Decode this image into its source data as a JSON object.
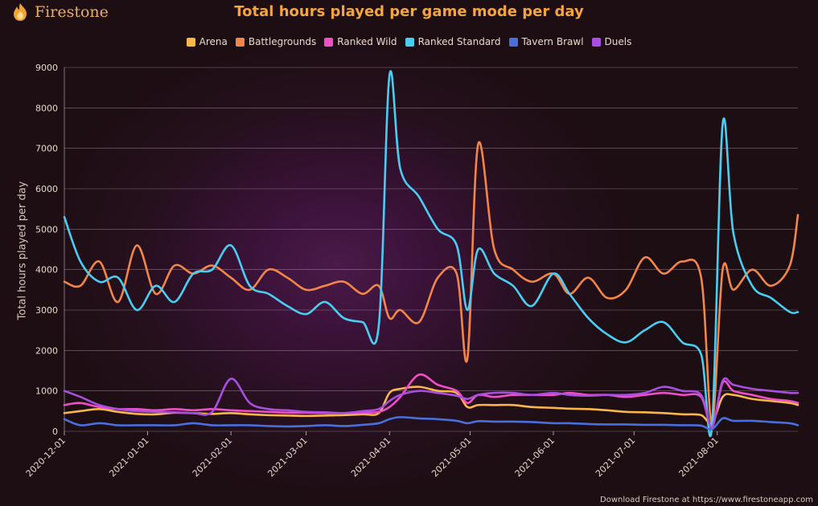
{
  "brand": {
    "name": "Firestone",
    "icon": "flame-logo-icon"
  },
  "colors": {
    "accent": "#f4a441",
    "background": "#1c0e12"
  },
  "footer": {
    "text": "Download Firestone at https://www.firestoneapp.com"
  },
  "chart_data": {
    "type": "line",
    "title": "Total hours played per game mode per day",
    "xlabel": "",
    "ylabel": "Total hours played per day",
    "ylim": [
      0,
      9000
    ],
    "yticks": [
      0,
      1000,
      2000,
      3000,
      4000,
      5000,
      6000,
      7000,
      8000,
      9000
    ],
    "xlim": [
      "2020-12-01",
      "2021-08-31"
    ],
    "x": [
      "2020-12-01",
      "2020-12-07",
      "2020-12-14",
      "2020-12-21",
      "2020-12-28",
      "2021-01-04",
      "2021-01-11",
      "2021-01-18",
      "2021-01-25",
      "2021-02-01",
      "2021-02-08",
      "2021-02-15",
      "2021-02-22",
      "2021-03-01",
      "2021-03-08",
      "2021-03-15",
      "2021-03-22",
      "2021-03-28",
      "2021-04-01",
      "2021-04-05",
      "2021-04-12",
      "2021-04-19",
      "2021-04-26",
      "2021-04-30",
      "2021-05-04",
      "2021-05-10",
      "2021-05-17",
      "2021-05-24",
      "2021-06-01",
      "2021-06-07",
      "2021-06-14",
      "2021-06-21",
      "2021-06-28",
      "2021-07-05",
      "2021-07-12",
      "2021-07-19",
      "2021-07-26",
      "2021-07-30",
      "2021-08-03",
      "2021-08-07",
      "2021-08-14",
      "2021-08-21",
      "2021-08-28",
      "2021-08-31"
    ],
    "xticks": [
      "2020-12-01",
      "2021-01-01",
      "2021-02-01",
      "2021-03-01",
      "2021-04-01",
      "2021-05-01",
      "2021-06-01",
      "2021-07-01",
      "2021-08-01"
    ],
    "legend": "top-center",
    "grid": true,
    "series": [
      {
        "name": "Arena",
        "color": "#f9b64a",
        "values": [
          450,
          500,
          550,
          480,
          430,
          420,
          460,
          450,
          430,
          450,
          420,
          400,
          390,
          380,
          390,
          400,
          420,
          450,
          950,
          1050,
          1100,
          1000,
          950,
          600,
          650,
          650,
          650,
          600,
          580,
          560,
          550,
          520,
          480,
          470,
          450,
          420,
          400,
          200,
          850,
          900,
          800,
          750,
          700,
          650
        ]
      },
      {
        "name": "Battlegrounds",
        "color": "#f2864a",
        "values": [
          3700,
          3600,
          4200,
          3200,
          4600,
          3400,
          4100,
          3900,
          4100,
          3800,
          3500,
          4000,
          3800,
          3500,
          3600,
          3700,
          3400,
          3600,
          2800,
          3000,
          2700,
          3800,
          3900,
          1800,
          7100,
          4500,
          4000,
          3700,
          3900,
          3400,
          3800,
          3300,
          3500,
          4300,
          3900,
          4200,
          3800,
          200,
          4000,
          3500,
          4000,
          3600,
          4100,
          5350
        ]
      },
      {
        "name": "Ranked Wild",
        "color": "#ee4fc7",
        "values": [
          650,
          700,
          600,
          550,
          550,
          520,
          550,
          520,
          550,
          520,
          500,
          480,
          460,
          460,
          450,
          450,
          460,
          480,
          600,
          850,
          1400,
          1150,
          1000,
          700,
          900,
          850,
          900,
          900,
          900,
          950,
          900,
          900,
          850,
          900,
          950,
          900,
          850,
          100,
          1200,
          1000,
          900,
          800,
          750,
          700
        ]
      },
      {
        "name": "Ranked Standard",
        "color": "#4bcdf2",
        "values": [
          5300,
          4200,
          3700,
          3800,
          3000,
          3600,
          3200,
          3900,
          4000,
          4600,
          3600,
          3400,
          3100,
          2900,
          3200,
          2800,
          2700,
          2600,
          8800,
          6500,
          5800,
          5000,
          4600,
          3000,
          4500,
          3900,
          3600,
          3100,
          3900,
          3400,
          2800,
          2400,
          2200,
          2500,
          2700,
          2200,
          1900,
          100,
          7600,
          4900,
          3600,
          3300,
          2950,
          2950
        ]
      },
      {
        "name": "Tavern Brawl",
        "color": "#4a6fdc",
        "values": [
          300,
          150,
          200,
          150,
          150,
          150,
          150,
          200,
          150,
          150,
          150,
          130,
          120,
          130,
          150,
          130,
          160,
          200,
          300,
          350,
          320,
          300,
          260,
          200,
          250,
          240,
          240,
          230,
          200,
          200,
          180,
          170,
          170,
          160,
          160,
          150,
          140,
          50,
          320,
          260,
          260,
          230,
          200,
          150
        ]
      },
      {
        "name": "Duels",
        "color": "#a94fe0",
        "values": [
          1000,
          850,
          650,
          550,
          500,
          480,
          470,
          450,
          480,
          1300,
          700,
          550,
          520,
          480,
          470,
          450,
          500,
          550,
          750,
          900,
          1000,
          950,
          880,
          800,
          900,
          950,
          950,
          900,
          950,
          900,
          880,
          900,
          900,
          950,
          1100,
          1000,
          900,
          100,
          1250,
          1150,
          1050,
          1000,
          950,
          950
        ]
      }
    ]
  }
}
